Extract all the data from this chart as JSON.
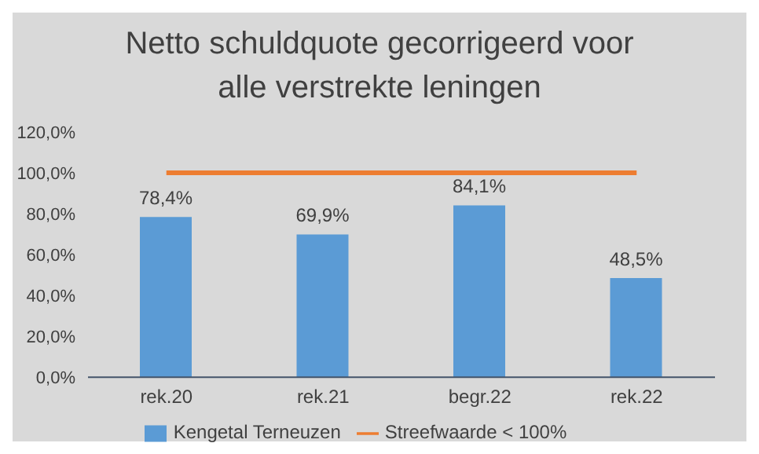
{
  "chart_data": {
    "type": "bar",
    "title": "Netto schuldquote gecorrigeerd voor\nalle verstrekte leningen",
    "categories": [
      "rek.20",
      "rek.21",
      "begr.22",
      "rek.22"
    ],
    "series": [
      {
        "name": "Kengetal Terneuzen",
        "color": "#5b9bd5",
        "values": [
          78.4,
          69.9,
          84.1,
          48.5
        ],
        "value_labels": [
          "78,4%",
          "69,9%",
          "84,1%",
          "48,5%"
        ]
      },
      {
        "name": "Streefwaarde < 100%",
        "type": "line",
        "color": "#ed7d31",
        "values": [
          100,
          100,
          100,
          100
        ]
      }
    ],
    "ylim": [
      0,
      120
    ],
    "yticks": [
      {
        "value": 0,
        "label": "0,0%"
      },
      {
        "value": 20,
        "label": "20,0%"
      },
      {
        "value": 40,
        "label": "40,0%"
      },
      {
        "value": 60,
        "label": "60,0%"
      },
      {
        "value": 80,
        "label": "80,0%"
      },
      {
        "value": 100,
        "label": "100,0%"
      },
      {
        "value": 120,
        "label": "120,0%"
      }
    ],
    "grid": false,
    "legend": "bottom",
    "marker": "none"
  }
}
